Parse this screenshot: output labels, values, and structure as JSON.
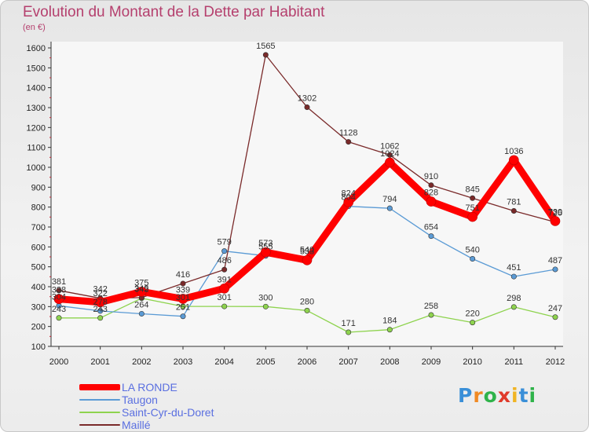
{
  "chart_data": {
    "type": "line",
    "title": "Evolution du Montant de la Dette par Habitant",
    "subtitle": "(en €)",
    "x": [
      2000,
      2001,
      2002,
      2003,
      2004,
      2005,
      2006,
      2007,
      2008,
      2009,
      2010,
      2011,
      2012
    ],
    "yticks": [
      100,
      200,
      300,
      400,
      500,
      600,
      700,
      800,
      900,
      1000,
      1100,
      1200,
      1300,
      1400,
      1500,
      1600
    ],
    "ylim": [
      100,
      1600
    ],
    "grid": "none",
    "legend_position": "bottom-left",
    "series": [
      {
        "name": "LA RONDE",
        "color": "#ff0000",
        "values": [
          338,
          322,
          375,
          339,
          391,
          573,
          533,
          824,
          1024,
          828,
          751,
          1036,
          730
        ]
      },
      {
        "name": "Taugon",
        "color": "#5b9bd5",
        "values": [
          304,
          278,
          264,
          251,
          579,
          555,
          540,
          804,
          794,
          654,
          540,
          451,
          487
        ]
      },
      {
        "name": "Saint-Cyr-du-Doret",
        "color": "#8ed34e",
        "values": [
          243,
          243,
          342,
          301,
          301,
          300,
          280,
          171,
          184,
          258,
          220,
          298,
          247
        ]
      },
      {
        "name": "Maillé",
        "color": "#7a2a2a",
        "values": [
          381,
          342,
          345,
          416,
          486,
          1565,
          1302,
          1128,
          1062,
          910,
          845,
          781,
          725
        ]
      }
    ]
  },
  "brand": {
    "letters": [
      "P",
      "r",
      "o",
      "x",
      "i",
      "t",
      "i"
    ],
    "colors": [
      "#3a8fd8",
      "#f08a24",
      "#2fb34a",
      "#e03a2a",
      "#f0b424",
      "#3a8fd8",
      "#2fb34a"
    ]
  }
}
